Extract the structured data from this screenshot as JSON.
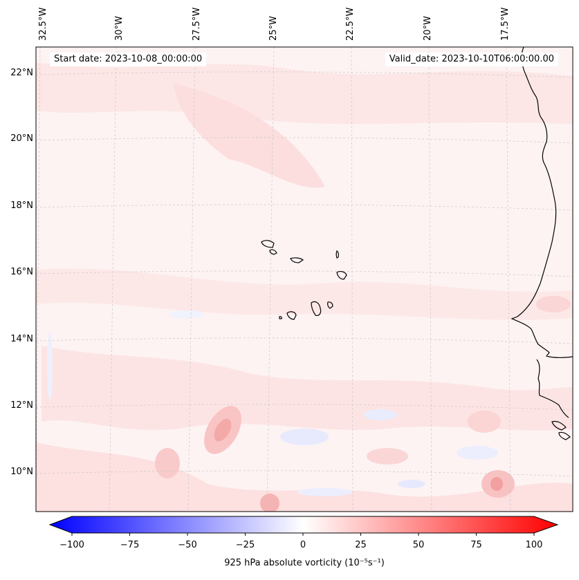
{
  "map": {
    "start_date": "Start date: 2023-10-08_00:00:00",
    "valid_date": "Valid_date: 2023-10-10T06:00:00.00",
    "lon_labels": [
      "32.5°W",
      "30°W",
      "27.5°W",
      "25°W",
      "22.5°W",
      "20°W",
      "17.5°W"
    ],
    "lat_labels": [
      "22°N",
      "20°N",
      "18°N",
      "16°N",
      "14°N",
      "12°N",
      "10°N"
    ]
  },
  "colorbar": {
    "ticks": [
      "−100",
      "−75",
      "−50",
      "−25",
      "0",
      "25",
      "50",
      "75",
      "100"
    ],
    "label": "925 hPa absolute vorticity (10⁻⁵s⁻¹)",
    "min_color": "#0000ff",
    "mid_color": "#ffffff",
    "max_color": "#ff0000"
  },
  "colors": {
    "background_pink": "#fdf1f1",
    "light_pink": "#fde3e3",
    "pink": "#fbd0d0",
    "light_blue": "#e6eafe",
    "coast": "#000000",
    "grid": "#c8c8c8"
  }
}
